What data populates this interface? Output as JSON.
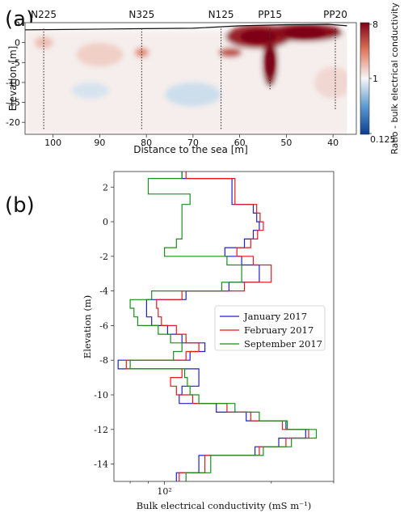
{
  "chart_data": [
    {
      "panel_label": "(a)",
      "type": "heatmap",
      "xlabel": "Distance to the sea [m]",
      "ylabel": "Elevation [m]",
      "xlim": [
        106,
        35
      ],
      "ylim": [
        -23,
        5
      ],
      "x_ticks": [
        100,
        90,
        80,
        70,
        60,
        50,
        40
      ],
      "y_ticks": [
        5,
        0,
        -5,
        -10,
        -15,
        -20
      ],
      "colorbar": {
        "label": "Ratio - bulk electrical conductivity",
        "scale": "log",
        "ticks": [
          "8",
          "1",
          "0.125"
        ],
        "colors": [
          "#0b3f8f",
          "#f7f7f7",
          "#7f0014"
        ]
      },
      "wells": [
        {
          "name": "N225",
          "x": 102,
          "bottom": -22
        },
        {
          "name": "N325",
          "x": 81,
          "bottom": -22
        },
        {
          "name": "N125",
          "x": 64,
          "bottom": -22
        },
        {
          "name": "PP15",
          "x": 53.5,
          "bottom": -12
        },
        {
          "name": "PP20",
          "x": 39.5,
          "bottom": -17
        }
      ],
      "surface": [
        [
          106,
          3.2
        ],
        [
          80,
          3.5
        ],
        [
          70,
          3.6
        ],
        [
          60,
          4.2
        ],
        [
          50,
          4.5
        ],
        [
          41,
          4.6
        ],
        [
          37,
          4.2
        ]
      ],
      "features": [
        {
          "x": 56,
          "y": 1.5,
          "rx": 7,
          "ry": 3,
          "ratio": 6
        },
        {
          "x": 46,
          "y": 2.5,
          "rx": 8,
          "ry": 2.2,
          "ratio": 7
        },
        {
          "x": 53.5,
          "y": -5,
          "rx": 1.6,
          "ry": 6,
          "ratio": 7
        },
        {
          "x": 62,
          "y": -2.5,
          "rx": 2.5,
          "ry": 1.2,
          "ratio": 4
        },
        {
          "x": 81,
          "y": -2.5,
          "rx": 1.5,
          "ry": 1.2,
          "ratio": 2.5
        },
        {
          "x": 102,
          "y": 0,
          "rx": 2,
          "ry": 1.5,
          "ratio": 1.6
        },
        {
          "x": 90,
          "y": -3,
          "rx": 5,
          "ry": 3,
          "ratio": 1.4
        },
        {
          "x": 70,
          "y": -13,
          "rx": 6,
          "ry": 3,
          "ratio": 0.75
        },
        {
          "x": 92,
          "y": -12,
          "rx": 4,
          "ry": 2,
          "ratio": 0.8
        },
        {
          "x": 40,
          "y": -10,
          "rx": 4,
          "ry": 4,
          "ratio": 1.3
        }
      ]
    },
    {
      "panel_label": "(b)",
      "type": "line",
      "xlabel": "Bulk electrical conductivity (mS m⁻¹)",
      "ylabel": "Elevation (m)",
      "x_scale": "log",
      "xlim": [
        72,
        300
      ],
      "ylim": [
        -15,
        2.9
      ],
      "x_ticks": [
        100
      ],
      "x_tick_labels": [
        "10²"
      ],
      "y_ticks": [
        2,
        0,
        -2,
        -4,
        -6,
        -8,
        -10,
        -12,
        -14
      ],
      "legend_position": "center-right",
      "series": [
        {
          "name": "January 2017",
          "color": "#1f1fd6",
          "steps": [
            [
              2.9,
              2.5,
              112
            ],
            [
              2.5,
              1.0,
              155
            ],
            [
              1.0,
              0.5,
              178
            ],
            [
              0.5,
              0.0,
              182
            ],
            [
              0.0,
              -0.5,
              185
            ],
            [
              -0.5,
              -1.0,
              178
            ],
            [
              -1.0,
              -1.5,
              168
            ],
            [
              -1.5,
              -2.0,
              148
            ],
            [
              -2.0,
              -2.5,
              165
            ],
            [
              -2.5,
              -3.5,
              185
            ],
            [
              -3.5,
              -4.0,
              152
            ],
            [
              -4.0,
              -4.5,
              115
            ],
            [
              -4.5,
              -5.5,
              89
            ],
            [
              -5.5,
              -6.0,
              92
            ],
            [
              -6.0,
              -6.5,
              102
            ],
            [
              -6.5,
              -7.0,
              112
            ],
            [
              -7.0,
              -7.5,
              130
            ],
            [
              -7.5,
              -8.0,
              118
            ],
            [
              -8.0,
              -8.5,
              74
            ],
            [
              -8.5,
              -9.5,
              125
            ],
            [
              -9.5,
              -10.0,
              112
            ],
            [
              -10.0,
              -10.5,
              110
            ],
            [
              -10.5,
              -11.0,
              140
            ],
            [
              -11.0,
              -11.5,
              170
            ],
            [
              -11.5,
              -12.0,
              220
            ],
            [
              -12.0,
              -12.5,
              250
            ],
            [
              -12.5,
              -13.0,
              210
            ],
            [
              -13.0,
              -13.5,
              180
            ],
            [
              -13.5,
              -14.5,
              125
            ],
            [
              -14.5,
              -15.0,
              108
            ]
          ]
        },
        {
          "name": "February 2017",
          "color": "#e41a1c",
          "steps": [
            [
              2.9,
              2.5,
              115
            ],
            [
              2.5,
              1.0,
              158
            ],
            [
              1.0,
              0.5,
              182
            ],
            [
              0.5,
              0.0,
              186
            ],
            [
              0.0,
              -0.5,
              190
            ],
            [
              -0.5,
              -1.0,
              183
            ],
            [
              -1.0,
              -1.5,
              175
            ],
            [
              -1.5,
              -2.0,
              160
            ],
            [
              -2.0,
              -2.5,
              178
            ],
            [
              -2.5,
              -3.5,
              200
            ],
            [
              -3.5,
              -4.0,
              168
            ],
            [
              -4.0,
              -4.5,
              112
            ],
            [
              -4.5,
              -5.0,
              95
            ],
            [
              -5.0,
              -5.5,
              96
            ],
            [
              -5.5,
              -6.0,
              98
            ],
            [
              -6.0,
              -6.5,
              108
            ],
            [
              -6.5,
              -7.0,
              115
            ],
            [
              -7.0,
              -7.5,
              125
            ],
            [
              -7.5,
              -8.0,
              115
            ],
            [
              -8.0,
              -8.5,
              78
            ],
            [
              -8.5,
              -9.0,
              112
            ],
            [
              -9.0,
              -9.5,
              104
            ],
            [
              -9.5,
              -10.0,
              108
            ],
            [
              -10.0,
              -10.5,
              120
            ],
            [
              -10.5,
              -11.0,
              150
            ],
            [
              -11.0,
              -11.5,
              175
            ],
            [
              -11.5,
              -12.0,
              215
            ],
            [
              -12.0,
              -12.5,
              255
            ],
            [
              -12.5,
              -13.0,
              220
            ],
            [
              -13.0,
              -13.5,
              185
            ],
            [
              -13.5,
              -14.5,
              130
            ],
            [
              -14.5,
              -15.0,
              110
            ]
          ]
        },
        {
          "name": "September 2017",
          "color": "#1a8f1a",
          "steps": [
            [
              2.9,
              2.5,
              112
            ],
            [
              2.5,
              1.6,
              90
            ],
            [
              1.6,
              1.0,
              118
            ],
            [
              1.0,
              -1.0,
              112
            ],
            [
              -1.0,
              -1.5,
              108
            ],
            [
              -1.5,
              -2.0,
              100
            ],
            [
              -2.0,
              -2.5,
              150
            ],
            [
              -2.5,
              -3.5,
              165
            ],
            [
              -3.5,
              -4.0,
              145
            ],
            [
              -4.0,
              -4.5,
              92
            ],
            [
              -4.5,
              -5.0,
              80
            ],
            [
              -5.0,
              -5.5,
              82
            ],
            [
              -5.5,
              -6.0,
              84
            ],
            [
              -6.0,
              -6.5,
              96
            ],
            [
              -6.5,
              -7.0,
              104
            ],
            [
              -7.0,
              -7.5,
              112
            ],
            [
              -7.5,
              -8.0,
              106
            ],
            [
              -8.0,
              -8.5,
              80
            ],
            [
              -8.5,
              -9.0,
              114
            ],
            [
              -9.0,
              -9.5,
              116
            ],
            [
              -9.5,
              -10.0,
              118
            ],
            [
              -10.0,
              -10.5,
              125
            ],
            [
              -10.5,
              -11.0,
              158
            ],
            [
              -11.0,
              -11.5,
              185
            ],
            [
              -11.5,
              -12.0,
              222
            ],
            [
              -12.0,
              -12.5,
              268
            ],
            [
              -12.5,
              -13.0,
              228
            ],
            [
              -13.0,
              -13.5,
              190
            ],
            [
              -13.5,
              -14.5,
              135
            ],
            [
              -14.5,
              -15.0,
              115
            ]
          ]
        }
      ]
    }
  ]
}
